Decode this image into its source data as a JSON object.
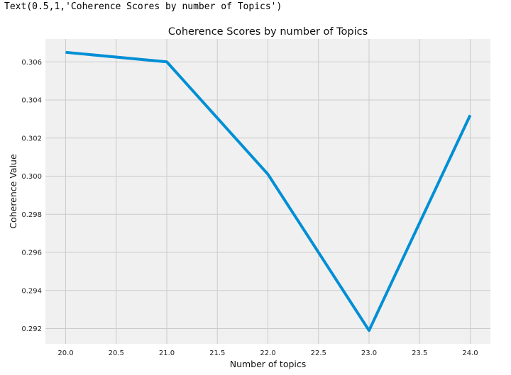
{
  "notebook_output": "Text(0.5,1,'Coherence Scores by number of Topics')",
  "chart_data": {
    "type": "line",
    "title": "Coherence Scores by number of Topics",
    "xlabel": "Number of topics",
    "ylabel": "Coherence Value",
    "x": [
      20,
      21,
      22,
      23,
      24
    ],
    "series": [
      {
        "values": [
          0.3065,
          0.306,
          0.3001,
          0.2919,
          0.3032
        ],
        "color": "#008fd5"
      }
    ],
    "xlim": [
      19.8,
      24.2
    ],
    "ylim": [
      0.2912,
      0.3072
    ],
    "xticks": [
      20.0,
      20.5,
      21.0,
      21.5,
      22.0,
      22.5,
      23.0,
      23.5,
      24.0
    ],
    "xtick_labels": [
      "20.0",
      "20.5",
      "21.0",
      "21.5",
      "22.0",
      "22.5",
      "23.0",
      "23.5",
      "24.0"
    ],
    "yticks": [
      0.292,
      0.294,
      0.296,
      0.298,
      0.3,
      0.302,
      0.304,
      0.306
    ],
    "ytick_labels": [
      "0.292",
      "0.294",
      "0.296",
      "0.298",
      "0.300",
      "0.302",
      "0.304",
      "0.306"
    ],
    "grid": true,
    "style": "fivethirtyeight",
    "background_color": "#f0f0f0",
    "grid_color": "#cbcbcb"
  }
}
